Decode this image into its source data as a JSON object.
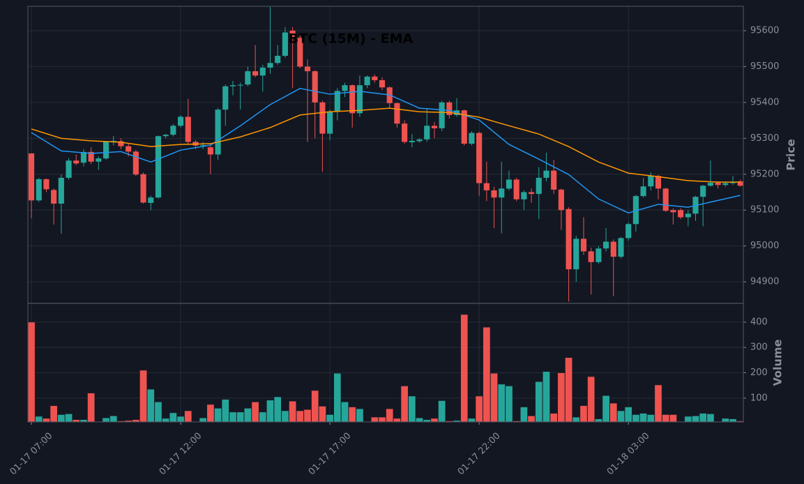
{
  "chart_data": [
    {
      "type": "candlestick",
      "title": "BTC (15M) - EMA",
      "ylabel": "Price",
      "up_color": "#26a69a",
      "down_color": "#ef5350",
      "open": [
        95258,
        95127,
        95186,
        95156,
        95118,
        95190,
        95238,
        95232,
        95262,
        95235,
        95244,
        95290,
        95292,
        95278,
        95263,
        95200,
        95120,
        95135,
        95306,
        95310,
        95335,
        95360,
        95290,
        95279,
        95275,
        95255,
        95380,
        95445,
        95447,
        95450,
        95487,
        95475,
        95497,
        95510,
        95530,
        95600,
        95580,
        95500,
        95487,
        95400,
        95313,
        95375,
        95432,
        95448,
        95370,
        95448,
        95472,
        95462,
        95442,
        95398,
        95341,
        95289,
        95292,
        95297,
        95335,
        95328,
        95400,
        95365,
        95378,
        95285,
        95315,
        95175,
        95155,
        95135,
        95160,
        95185,
        95130,
        95150,
        95145,
        95190,
        95210,
        95157,
        95103,
        94935,
        95020,
        94985,
        94955,
        94993,
        95012,
        94970,
        95022,
        95061,
        95139,
        95166,
        95195,
        95160,
        95100,
        95100,
        95080,
        95090,
        95137,
        95168,
        95176,
        95170,
        95175,
        95180
      ],
      "high": [
        95258,
        95190,
        95188,
        95160,
        95200,
        95245,
        95255,
        95270,
        95275,
        95250,
        95292,
        95307,
        95300,
        95285,
        95268,
        95205,
        95140,
        95308,
        95312,
        95340,
        95365,
        95410,
        95295,
        95290,
        95280,
        95385,
        95450,
        95460,
        95455,
        95500,
        95560,
        95505,
        95666,
        95560,
        95610,
        95610,
        95590,
        95520,
        95490,
        95405,
        95380,
        95440,
        95455,
        95450,
        95475,
        95475,
        95478,
        95470,
        95445,
        95400,
        95350,
        95312,
        95300,
        95385,
        95345,
        95405,
        95405,
        95412,
        95380,
        95320,
        95318,
        95235,
        95165,
        95235,
        95210,
        95190,
        95155,
        95160,
        95220,
        95260,
        95240,
        95160,
        95108,
        95028,
        95080,
        94995,
        95000,
        95050,
        95018,
        95025,
        95065,
        95142,
        95190,
        95205,
        95198,
        95162,
        95105,
        95105,
        95100,
        95140,
        95170,
        95238,
        95180,
        95180,
        95195,
        95185
      ],
      "low": [
        95077,
        95123,
        95150,
        95060,
        95034,
        95185,
        95225,
        95222,
        95228,
        95212,
        95240,
        95280,
        95270,
        95250,
        95195,
        95118,
        95100,
        95132,
        95300,
        95305,
        95330,
        95285,
        95270,
        95270,
        95200,
        95240,
        95335,
        95420,
        95380,
        95445,
        95470,
        95430,
        95480,
        95505,
        95525,
        95440,
        95495,
        95290,
        95300,
        95207,
        95295,
        95350,
        95415,
        95330,
        95360,
        95440,
        95455,
        95435,
        95385,
        95330,
        95285,
        95275,
        95288,
        95290,
        95300,
        95320,
        95355,
        95360,
        95280,
        95280,
        95140,
        95125,
        95050,
        95035,
        95155,
        95125,
        95100,
        95120,
        95075,
        95180,
        95145,
        95045,
        94845,
        94900,
        94975,
        94865,
        94950,
        94985,
        94860,
        94965,
        95015,
        95040,
        95135,
        95155,
        95130,
        95095,
        95060,
        95075,
        95055,
        95070,
        95055,
        95165,
        95160,
        95165,
        95170,
        95165
      ],
      "close": [
        95127,
        95186,
        95158,
        95118,
        95190,
        95238,
        95230,
        95262,
        95235,
        95244,
        95290,
        95293,
        95278,
        95263,
        95199,
        95121,
        95135,
        95306,
        95310,
        95335,
        95360,
        95290,
        95280,
        95281,
        95255,
        95380,
        95445,
        95448,
        95449,
        95487,
        95475,
        95497,
        95510,
        95530,
        95595,
        95580,
        95500,
        95487,
        95400,
        95313,
        95375,
        95432,
        95448,
        95370,
        95448,
        95472,
        95462,
        95442,
        95398,
        95341,
        95290,
        95293,
        95297,
        95335,
        95328,
        95400,
        95365,
        95378,
        95285,
        95315,
        95175,
        95155,
        95135,
        95160,
        95185,
        95130,
        95150,
        95145,
        95190,
        95210,
        95157,
        95100,
        94935,
        95020,
        94985,
        94955,
        94993,
        95012,
        94970,
        95022,
        95061,
        95139,
        95166,
        95195,
        95160,
        95098,
        95094,
        95080,
        95090,
        95137,
        95168,
        95176,
        95170,
        95175,
        95177,
        95168
      ],
      "series": [
        {
          "color": "#2196f3",
          "x": [
            0,
            4,
            8,
            12,
            16,
            20,
            24,
            28,
            32,
            36,
            40,
            44,
            48,
            52,
            56,
            60,
            64,
            68,
            72,
            76,
            80,
            84,
            88,
            92,
            95
          ],
          "values": [
            95316,
            95265,
            95258,
            95263,
            95234,
            95267,
            95281,
            95335,
            95394,
            95439,
            95423,
            95431,
            95421,
            95384,
            95378,
            95351,
            95283,
            95242,
            95199,
            95131,
            95092,
            95116,
            95108,
            95127,
            95141
          ]
        },
        {
          "color": "#ff9800",
          "x": [
            0,
            4,
            8,
            12,
            16,
            20,
            24,
            28,
            32,
            36,
            40,
            44,
            48,
            52,
            56,
            60,
            64,
            68,
            72,
            76,
            80,
            84,
            88,
            92,
            95
          ],
          "values": [
            95326,
            95300,
            95293,
            95289,
            95277,
            95283,
            95285,
            95304,
            95330,
            95365,
            95374,
            95378,
            95384,
            95374,
            95372,
            95359,
            95335,
            95312,
            95277,
            95234,
            95203,
            95193,
            95182,
            95178,
            95178
          ]
        }
      ],
      "xlim": [
        -0.47,
        95.4
      ],
      "ylim": [
        94840,
        95668
      ],
      "yticks": [
        94900,
        95000,
        95100,
        95200,
        95300,
        95400,
        95500,
        95600
      ],
      "grid": true
    },
    {
      "type": "bar",
      "ylabel": "Volume",
      "values": [
        400,
        28,
        20,
        70,
        35,
        38,
        15,
        15,
        120,
        5,
        22,
        30,
        10,
        12,
        15,
        210,
        135,
        85,
        20,
        42,
        28,
        50,
        5,
        22,
        75,
        60,
        95,
        45,
        45,
        60,
        85,
        45,
        92,
        105,
        50,
        88,
        50,
        55,
        130,
        68,
        35,
        198,
        85,
        65,
        58,
        5,
        25,
        25,
        58,
        20,
        148,
        108,
        22,
        15,
        20,
        90,
        10,
        12,
        430,
        20,
        108,
        380,
        198,
        155,
        148,
        10,
        65,
        30,
        165,
        205,
        40,
        200,
        260,
        25,
        70,
        185,
        18,
        110,
        80,
        50,
        65,
        35,
        40,
        35,
        152,
        35,
        35,
        8,
        28,
        30,
        40,
        38,
        8,
        20,
        18,
        10
      ],
      "xlim": [
        -0.47,
        95.4
      ],
      "ylim": [
        6,
        474
      ],
      "yticks": [
        100,
        200,
        300,
        400
      ],
      "xticks": [
        {
          "value": 0,
          "label": "01-17 07:00"
        },
        {
          "value": 20,
          "label": "01-17 12:00"
        },
        {
          "value": 40,
          "label": "01-17 17:00"
        },
        {
          "value": 60,
          "label": "01-17 22:00"
        },
        {
          "value": 80,
          "label": "01-18 03:00"
        }
      ],
      "grid": true
    }
  ]
}
